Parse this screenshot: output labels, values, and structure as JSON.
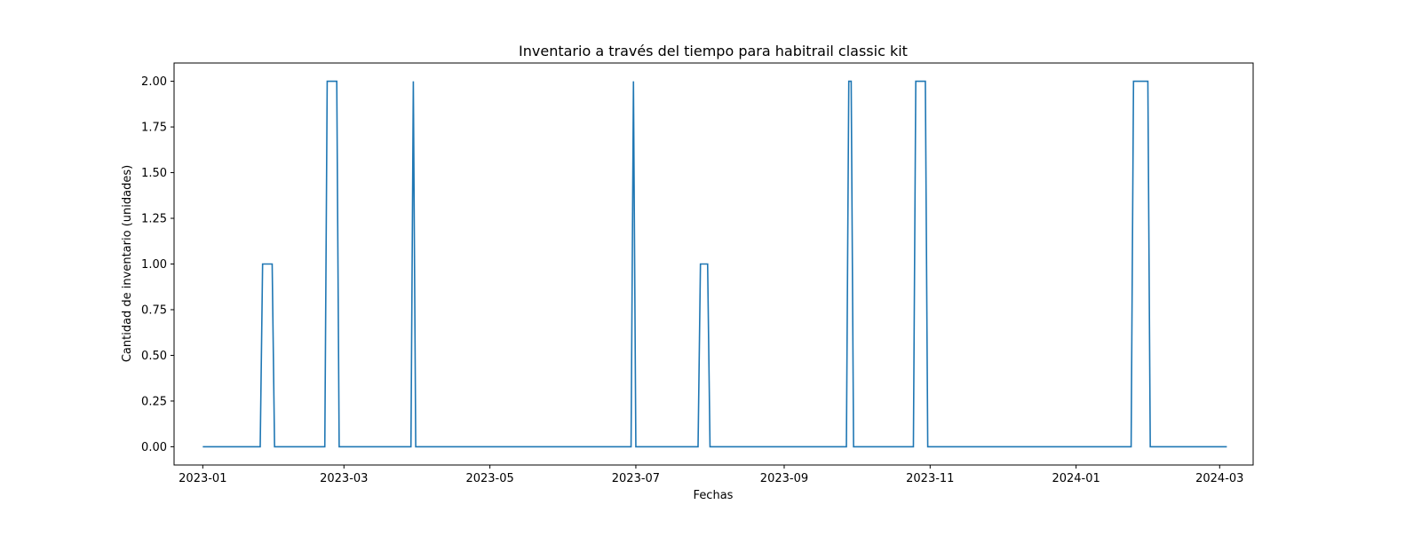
{
  "chart_data": {
    "type": "line",
    "title": "Inventario a través del tiempo para habitrail classic kit",
    "xlabel": "Fechas",
    "ylabel": "Cantidad de inventario (unidades)",
    "xlim": [
      "2022-12-20",
      "2024-03-15"
    ],
    "ylim": [
      -0.1,
      2.1
    ],
    "x_ticks": [
      "2023-01",
      "2023-03",
      "2023-05",
      "2023-07",
      "2023-09",
      "2023-11",
      "2024-01",
      "2024-03"
    ],
    "y_ticks": [
      "0.00",
      "0.25",
      "0.50",
      "0.75",
      "1.00",
      "1.25",
      "1.50",
      "1.75",
      "2.00"
    ],
    "grid": false,
    "legend": "none",
    "line_color": "#1f77b4",
    "series": [
      {
        "x": [
          "2023-01-01",
          "2023-01-25",
          "2023-01-26",
          "2023-01-30",
          "2023-01-31",
          "2023-02-21",
          "2023-02-22",
          "2023-02-26",
          "2023-02-27",
          "2023-03-29",
          "2023-03-30",
          "2023-03-31",
          "2023-06-29",
          "2023-06-30",
          "2023-07-01",
          "2023-07-27",
          "2023-07-28",
          "2023-07-31",
          "2023-08-01",
          "2023-09-27",
          "2023-09-28",
          "2023-09-29",
          "2023-09-30",
          "2023-10-25",
          "2023-10-26",
          "2023-10-30",
          "2023-10-31",
          "2024-01-24",
          "2024-01-25",
          "2024-01-31",
          "2024-02-01",
          "2024-03-04"
        ],
        "values": [
          0,
          0,
          1,
          1,
          0,
          0,
          2,
          2,
          0,
          0,
          2,
          0,
          0,
          2,
          0,
          0,
          1,
          1,
          0,
          0,
          2,
          2,
          0,
          0,
          2,
          2,
          0,
          0,
          2,
          2,
          0,
          0
        ]
      }
    ]
  }
}
